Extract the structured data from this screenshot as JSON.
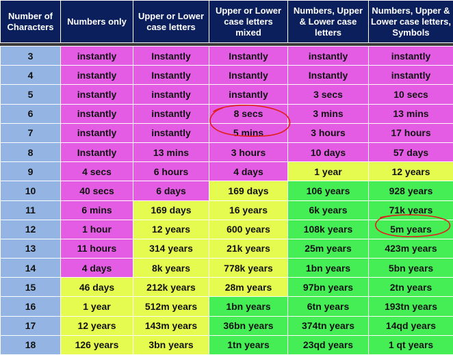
{
  "headers": [
    "Number of Characters",
    "Numbers only",
    "Upper or Lower case letters",
    "Upper or Lower case letters mixed",
    "Numbers, Upper & Lower case letters",
    "Numbers, Upper & Lower case letters, Symbols"
  ],
  "colors": {
    "header": "#0b1f5c",
    "chars": "#94b5e3",
    "magenta": "#e45ce4",
    "yellow": "#e6fb50",
    "green": "#46ee56",
    "annotation": "#e0201c"
  },
  "rows": [
    {
      "chars": "3",
      "cells": [
        [
          "instantly",
          "m"
        ],
        [
          "Instantly",
          "m"
        ],
        [
          "Instantly",
          "m"
        ],
        [
          "instantly",
          "m"
        ],
        [
          "instantly",
          "m"
        ]
      ]
    },
    {
      "chars": "4",
      "cells": [
        [
          "instantly",
          "m"
        ],
        [
          "Instantly",
          "m"
        ],
        [
          "Instantly",
          "m"
        ],
        [
          "Instantly",
          "m"
        ],
        [
          "instantly",
          "m"
        ]
      ]
    },
    {
      "chars": "5",
      "cells": [
        [
          "instantly",
          "m"
        ],
        [
          "instantly",
          "m"
        ],
        [
          "instantly",
          "m"
        ],
        [
          "3 secs",
          "m"
        ],
        [
          "10 secs",
          "m"
        ]
      ]
    },
    {
      "chars": "6",
      "cells": [
        [
          "instantly",
          "m"
        ],
        [
          "instantly",
          "m"
        ],
        [
          "8 secs",
          "m"
        ],
        [
          "3 mins",
          "m"
        ],
        [
          "13 mins",
          "m"
        ]
      ]
    },
    {
      "chars": "7",
      "cells": [
        [
          "instantly",
          "m"
        ],
        [
          "instantly",
          "m"
        ],
        [
          "5 mins",
          "m"
        ],
        [
          "3 hours",
          "m"
        ],
        [
          "17 hours",
          "m"
        ]
      ]
    },
    {
      "chars": "8",
      "cells": [
        [
          "Instantly",
          "m"
        ],
        [
          "13 mins",
          "m"
        ],
        [
          "3 hours",
          "m"
        ],
        [
          "10 days",
          "m"
        ],
        [
          "57 days",
          "m"
        ]
      ]
    },
    {
      "chars": "9",
      "cells": [
        [
          "4 secs",
          "m"
        ],
        [
          "6 hours",
          "m"
        ],
        [
          "4 days",
          "m"
        ],
        [
          "1 year",
          "y"
        ],
        [
          "12 years",
          "y"
        ]
      ]
    },
    {
      "chars": "10",
      "cells": [
        [
          "40 secs",
          "m"
        ],
        [
          "6 days",
          "m"
        ],
        [
          "169 days",
          "y"
        ],
        [
          "106 years",
          "g"
        ],
        [
          "928 years",
          "g"
        ]
      ]
    },
    {
      "chars": "11",
      "cells": [
        [
          "6 mins",
          "m"
        ],
        [
          "169 days",
          "y"
        ],
        [
          "16 years",
          "y"
        ],
        [
          "6k years",
          "g"
        ],
        [
          "71k years",
          "g"
        ]
      ]
    },
    {
      "chars": "12",
      "cells": [
        [
          "1 hour",
          "m"
        ],
        [
          "12 years",
          "y"
        ],
        [
          "600 years",
          "y"
        ],
        [
          "108k years",
          "g"
        ],
        [
          "5m years",
          "g"
        ]
      ]
    },
    {
      "chars": "13",
      "cells": [
        [
          "11 hours",
          "m"
        ],
        [
          "314 years",
          "y"
        ],
        [
          "21k years",
          "y"
        ],
        [
          "25m years",
          "g"
        ],
        [
          "423m years",
          "g"
        ]
      ]
    },
    {
      "chars": "14",
      "cells": [
        [
          "4 days",
          "m"
        ],
        [
          "8k years",
          "y"
        ],
        [
          "778k years",
          "y"
        ],
        [
          "1bn years",
          "g"
        ],
        [
          "5bn years",
          "g"
        ]
      ]
    },
    {
      "chars": "15",
      "cells": [
        [
          "46 days",
          "y"
        ],
        [
          "212k years",
          "y"
        ],
        [
          "28m years",
          "y"
        ],
        [
          "97bn years",
          "g"
        ],
        [
          "2tn years",
          "g"
        ]
      ]
    },
    {
      "chars": "16",
      "cells": [
        [
          "1 year",
          "y"
        ],
        [
          "512m years",
          "y"
        ],
        [
          "1bn years",
          "g"
        ],
        [
          "6tn years",
          "g"
        ],
        [
          "193tn years",
          "g"
        ]
      ]
    },
    {
      "chars": "17",
      "cells": [
        [
          "12 years",
          "y"
        ],
        [
          "143m years",
          "y"
        ],
        [
          "36bn years",
          "g"
        ],
        [
          "374tn years",
          "g"
        ],
        [
          "14qd years",
          "g"
        ]
      ]
    },
    {
      "chars": "18",
      "cells": [
        [
          "126 years",
          "y"
        ],
        [
          "3bn years",
          "y"
        ],
        [
          "1tn years",
          "g"
        ],
        [
          "23qd years",
          "g"
        ],
        [
          "1 qt years",
          "g"
        ]
      ]
    }
  ],
  "annotations": [
    {
      "description": "hand-drawn red oval",
      "row_chars": "6",
      "column_header": "Upper or Lower case letters mixed",
      "spans_rows": [
        "6",
        "7"
      ]
    },
    {
      "description": "hand-drawn red oval",
      "row_chars": "12",
      "column_header": "Numbers, Upper & Lower case letters, Symbols"
    }
  ]
}
